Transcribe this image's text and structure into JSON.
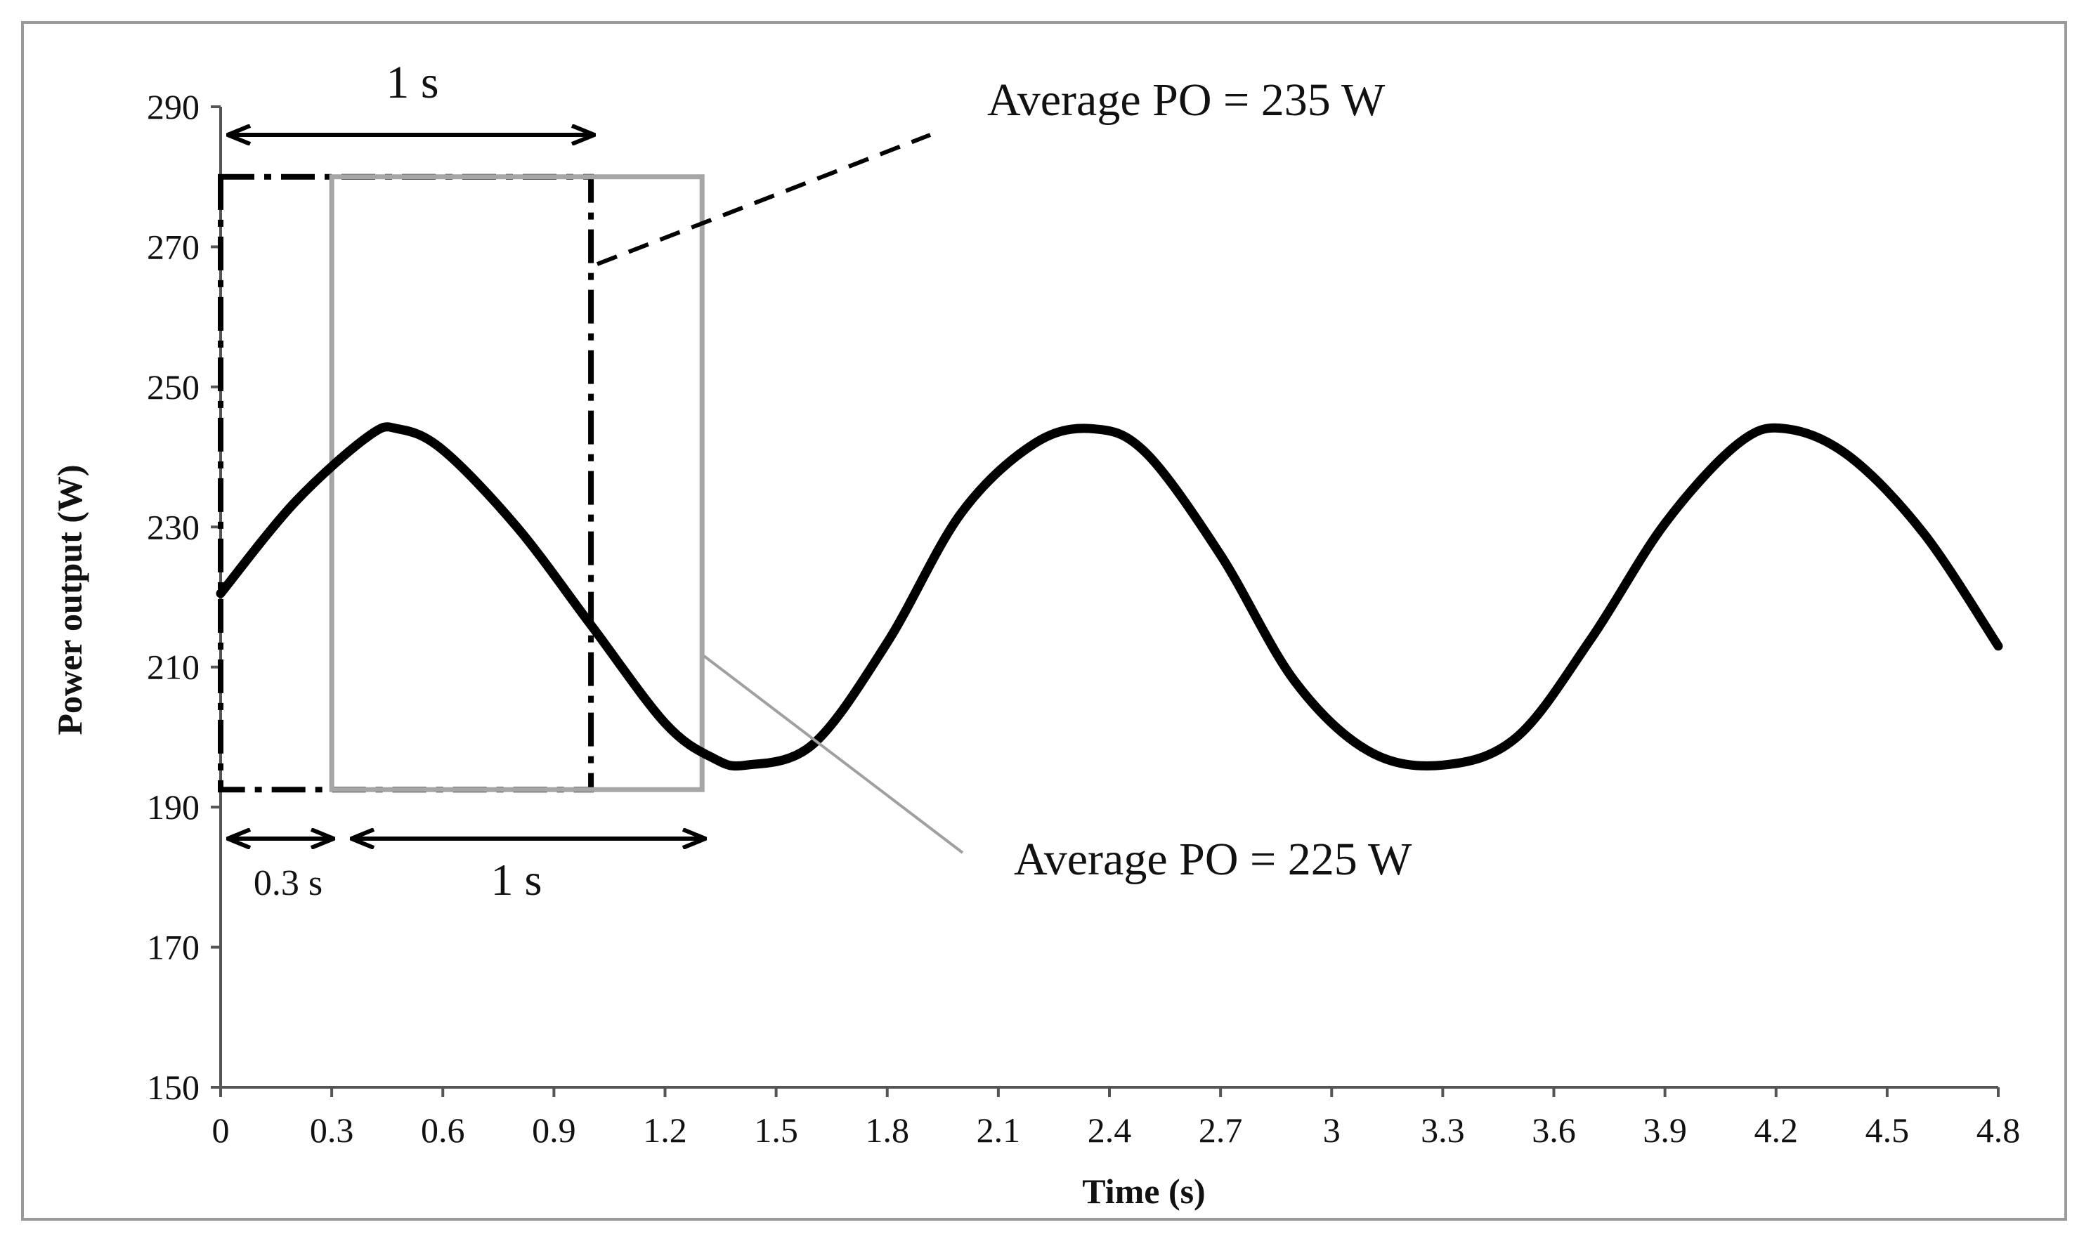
{
  "chart_data": {
    "type": "line",
    "title": "",
    "xlabel": "Time (s)",
    "ylabel": "Power output (W)",
    "xlim": [
      0,
      4.8
    ],
    "ylim": [
      150,
      290
    ],
    "x_ticks": [
      "0",
      "0.3",
      "0.6",
      "0.9",
      "1.2",
      "1.5",
      "1.8",
      "2.1",
      "2.4",
      "2.7",
      "3",
      "3.3",
      "3.6",
      "3.9",
      "4.2",
      "4.5",
      "4.8"
    ],
    "y_ticks": [
      "150",
      "170",
      "190",
      "210",
      "230",
      "250",
      "270",
      "290"
    ],
    "grid": false,
    "legend": "none",
    "series": [
      {
        "name": "Power output",
        "x": [
          0,
          0.2,
          0.4,
          0.48,
          0.6,
          0.8,
          1.0,
          1.2,
          1.33,
          1.42,
          1.6,
          1.8,
          2.0,
          2.2,
          2.36,
          2.5,
          2.7,
          2.9,
          3.1,
          3.3,
          3.5,
          3.7,
          3.9,
          4.1,
          4.23,
          4.4,
          4.6,
          4.8
        ],
        "y": [
          220.5,
          233.5,
          243.0,
          244.0,
          241.0,
          230.0,
          216.0,
          202.0,
          197.0,
          196.0,
          199.0,
          213.5,
          232.0,
          242.0,
          244.0,
          240.5,
          226.0,
          208.0,
          198.0,
          196.0,
          200.0,
          214.0,
          230.5,
          242.0,
          244.0,
          240.0,
          229.0,
          213.0
        ]
      }
    ],
    "windows": [
      {
        "name": "window-a",
        "x_start": 0,
        "x_end": 1.0,
        "y_bottom": 192.5,
        "y_top": 280,
        "style": "dash-dot black"
      },
      {
        "name": "window-b",
        "x_start": 0.3,
        "x_end": 1.3,
        "y_bottom": 192.5,
        "y_top": 280,
        "style": "solid gray"
      }
    ],
    "annotations": {
      "top_span": "1 s",
      "avg_a": "Average PO = 235 W",
      "avg_b": "Average PO = 225 W",
      "offset_span": "0.3 s",
      "bottom_span": "1 s"
    }
  }
}
